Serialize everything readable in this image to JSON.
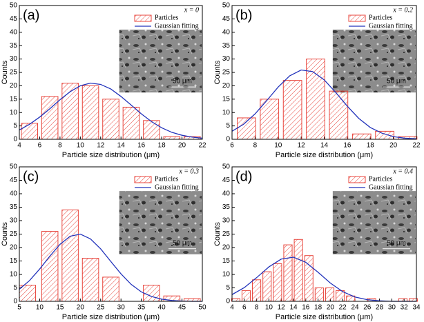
{
  "chart_data": [
    {
      "type": "bar",
      "panel_label": "(a)",
      "annotation": "x = 0",
      "xlabel": "Particle size distribution (μm)",
      "ylabel": "Counts",
      "scale_label": "50 μm",
      "xlim": [
        4,
        22
      ],
      "xticks": [
        4,
        6,
        8,
        10,
        12,
        14,
        16,
        18,
        20,
        22
      ],
      "ylim": [
        0,
        50
      ],
      "yticks": [
        0,
        5,
        10,
        15,
        20,
        25,
        30,
        35,
        40,
        45,
        50
      ],
      "legend": "upper right",
      "grid": false,
      "series": [
        {
          "name": "Particles",
          "type": "bar",
          "color": "#e8453c",
          "x": [
            5,
            7,
            9,
            11,
            13,
            15,
            17,
            19,
            21
          ],
          "values": [
            6,
            16,
            21,
            20,
            15,
            12,
            7,
            1,
            1
          ]
        },
        {
          "name": "Gaussian fitting",
          "type": "line",
          "color": "#2233bb",
          "x": [
            4,
            5,
            6,
            7,
            8,
            9,
            10,
            11,
            12,
            13,
            14,
            15,
            16,
            17,
            18,
            19,
            20,
            21,
            22
          ],
          "values": [
            3.5,
            5.6,
            8.3,
            11.4,
            14.8,
            17.8,
            20.0,
            21.0,
            20.5,
            18.8,
            16.0,
            12.8,
            9.5,
            6.6,
            4.3,
            2.6,
            1.5,
            0.8,
            0.4
          ]
        }
      ]
    },
    {
      "type": "bar",
      "panel_label": "(b)",
      "annotation": "x = 0.2",
      "xlabel": "Particle size distribution (μm)",
      "ylabel": "Counts",
      "scale_label": "50 μm",
      "xlim": [
        6,
        22
      ],
      "xticks": [
        6,
        8,
        10,
        12,
        14,
        16,
        18,
        20,
        22
      ],
      "ylim": [
        0,
        50
      ],
      "yticks": [
        0,
        5,
        10,
        15,
        20,
        25,
        30,
        35,
        40,
        45,
        50
      ],
      "legend": "upper right",
      "grid": false,
      "series": [
        {
          "name": "Particles",
          "type": "bar",
          "color": "#e8453c",
          "x": [
            7.25,
            9.25,
            11.25,
            13.25,
            15.25,
            17.25,
            19.25,
            21.25
          ],
          "values": [
            8,
            15,
            22,
            30,
            18,
            2,
            3,
            1
          ]
        },
        {
          "name": "Gaussian fitting",
          "type": "line",
          "color": "#2233bb",
          "x": [
            6,
            7,
            8,
            9,
            10,
            11,
            12,
            13,
            14,
            15,
            16,
            17,
            18,
            19,
            20,
            21,
            22
          ],
          "values": [
            3.0,
            5.6,
            9.5,
            14.4,
            19.5,
            23.7,
            25.9,
            25.3,
            22.2,
            17.5,
            12.4,
            7.8,
            4.4,
            2.3,
            1.0,
            0.4,
            0.2
          ]
        }
      ]
    },
    {
      "type": "bar",
      "panel_label": "(c)",
      "annotation": "x = 0.3",
      "xlabel": "Particle size distribution (μm)",
      "ylabel": "Counts",
      "scale_label": "50 μm",
      "xlim": [
        5,
        50
      ],
      "xticks": [
        5,
        10,
        15,
        20,
        25,
        30,
        35,
        40,
        45,
        50
      ],
      "ylim": [
        0,
        50
      ],
      "yticks": [
        0,
        5,
        10,
        15,
        20,
        25,
        30,
        35,
        40,
        45,
        50
      ],
      "legend": "upper right",
      "grid": false,
      "series": [
        {
          "name": "Particles",
          "type": "bar",
          "color": "#e8453c",
          "x": [
            7,
            12.5,
            17.5,
            22.5,
            27.5,
            37.5,
            42.5,
            47.5
          ],
          "values": [
            6,
            26,
            34,
            16,
            9,
            6,
            2,
            1
          ]
        },
        {
          "name": "Gaussian fitting",
          "type": "line",
          "color": "#2233bb",
          "x": [
            5,
            7.5,
            10,
            12.5,
            15,
            17.5,
            20,
            22.5,
            25,
            27.5,
            30,
            32.5,
            35,
            37.5,
            40,
            42.5,
            45,
            47.5,
            50
          ],
          "values": [
            4.5,
            7.7,
            12.0,
            16.8,
            21.2,
            24.2,
            25.0,
            23.2,
            19.5,
            14.8,
            10.2,
            6.3,
            3.5,
            1.8,
            0.8,
            0.3,
            0.1,
            0.0,
            0.0
          ]
        }
      ]
    },
    {
      "type": "bar",
      "panel_label": "(d)",
      "annotation": "x = 0.4",
      "xlabel": "Particle size distribution (μm)",
      "ylabel": "Counts",
      "scale_label": "50 μm",
      "xlim": [
        4,
        34
      ],
      "xticks": [
        4,
        6,
        8,
        10,
        12,
        14,
        16,
        18,
        20,
        22,
        24,
        26,
        28,
        30,
        32,
        34
      ],
      "ylim": [
        0,
        50
      ],
      "yticks": [
        0,
        5,
        10,
        15,
        20,
        25,
        30,
        35,
        40,
        45,
        50
      ],
      "legend": "upper right",
      "grid": false,
      "series": [
        {
          "name": "Particles",
          "type": "bar",
          "color": "#e8453c",
          "x": [
            4.6,
            6.3,
            8.0,
            9.7,
            11.4,
            13.1,
            14.8,
            16.5,
            18.2,
            19.9,
            21.6,
            23.3,
            26.7,
            31.8,
            33.5
          ],
          "values": [
            1,
            4,
            8,
            11,
            14,
            21,
            23,
            17,
            5,
            5,
            4,
            2,
            1,
            1,
            1
          ]
        },
        {
          "name": "Gaussian fitting",
          "type": "line",
          "color": "#2233bb",
          "x": [
            4,
            6,
            8,
            10,
            12,
            14,
            16,
            18,
            20,
            22,
            24,
            26,
            28,
            30,
            32,
            34
          ],
          "values": [
            2.5,
            5.1,
            8.8,
            12.8,
            15.7,
            16.4,
            14.5,
            10.8,
            6.8,
            3.6,
            1.6,
            0.6,
            0.2,
            0.0,
            0.0,
            0.0
          ]
        }
      ]
    }
  ]
}
